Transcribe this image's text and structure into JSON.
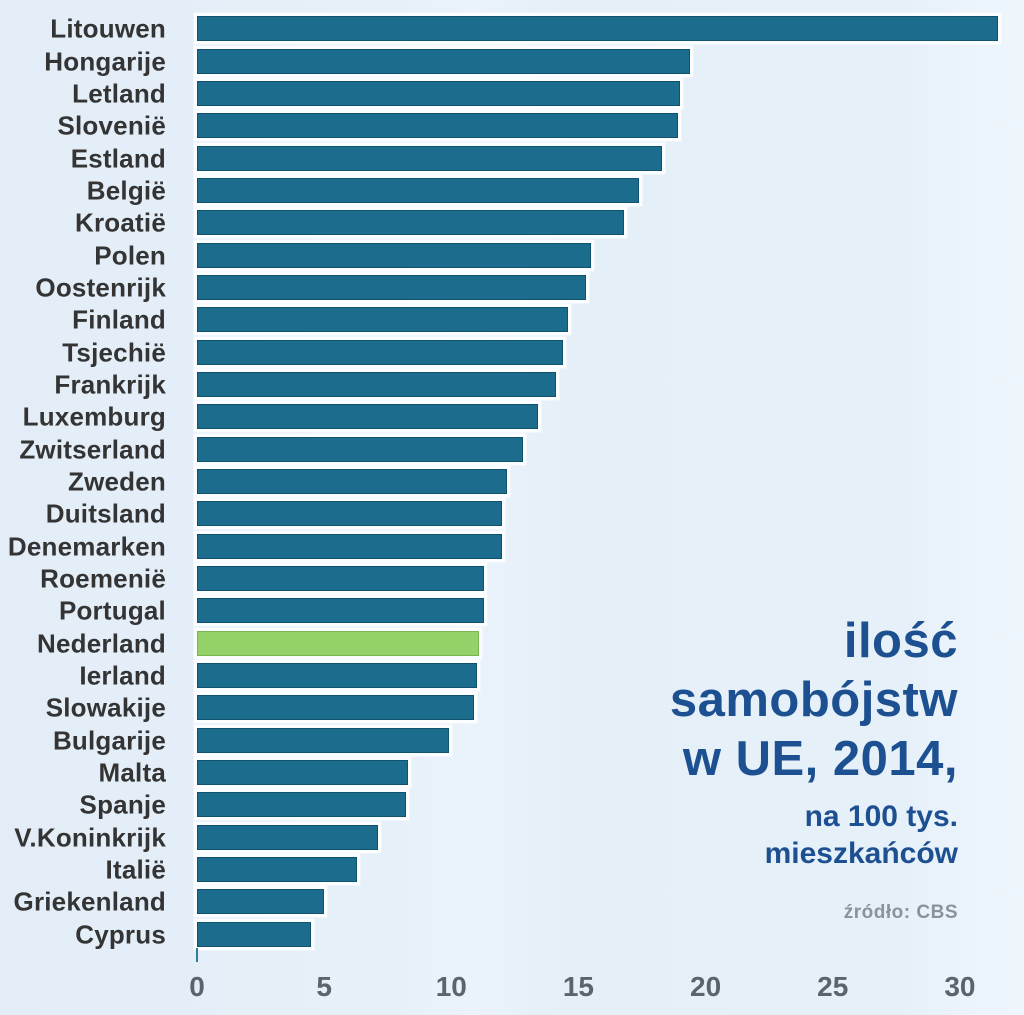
{
  "chart_data": {
    "type": "bar",
    "orientation": "horizontal",
    "title": "ilość samobójstw w UE, 2014, na 100 tys. mieszkańców",
    "title_lines": [
      "ilość",
      "samobójstw",
      "w UE, 2014,"
    ],
    "subtitle_lines": [
      "na 100 tys.",
      "mieszkańców"
    ],
    "source": "źródło: CBS",
    "categories": [
      "Litouwen",
      "Hongarije",
      "Letland",
      "Slovenië",
      "Estland",
      "België",
      "Kroatië",
      "Polen",
      "Oostenrijk",
      "Finland",
      "Tsjechië",
      "Frankrijk",
      "Luxemburg",
      "Zwitserland",
      "Zweden",
      "Duitsland",
      "Denemarken",
      "Roemenië",
      "Portugal",
      "Nederland",
      "Ierland",
      "Slowakije",
      "Bulgarije",
      "Malta",
      "Spanje",
      "V.Koninkrijk",
      "Italië",
      "Griekenland",
      "Cyprus"
    ],
    "values": [
      31.5,
      19.4,
      19.0,
      18.9,
      18.3,
      17.4,
      16.8,
      15.5,
      15.3,
      14.6,
      14.4,
      14.1,
      13.4,
      12.8,
      12.2,
      12.0,
      12.0,
      11.3,
      11.3,
      11.1,
      11.0,
      10.9,
      9.9,
      8.3,
      8.2,
      7.1,
      6.3,
      5.0,
      4.5
    ],
    "highlight_category": "Nederland",
    "x_ticks": [
      0,
      5,
      10,
      15,
      20,
      25,
      30
    ],
    "xlim": [
      0,
      32
    ],
    "grid": false,
    "legend": "none",
    "colors": {
      "bar": "#1c6d8d",
      "bar_highlight": "#94d169",
      "background": "#e6eff8",
      "title": "#1d5091",
      "country_label": "#343434",
      "tick_label": "#5a646d",
      "source": "#8a929c"
    }
  }
}
